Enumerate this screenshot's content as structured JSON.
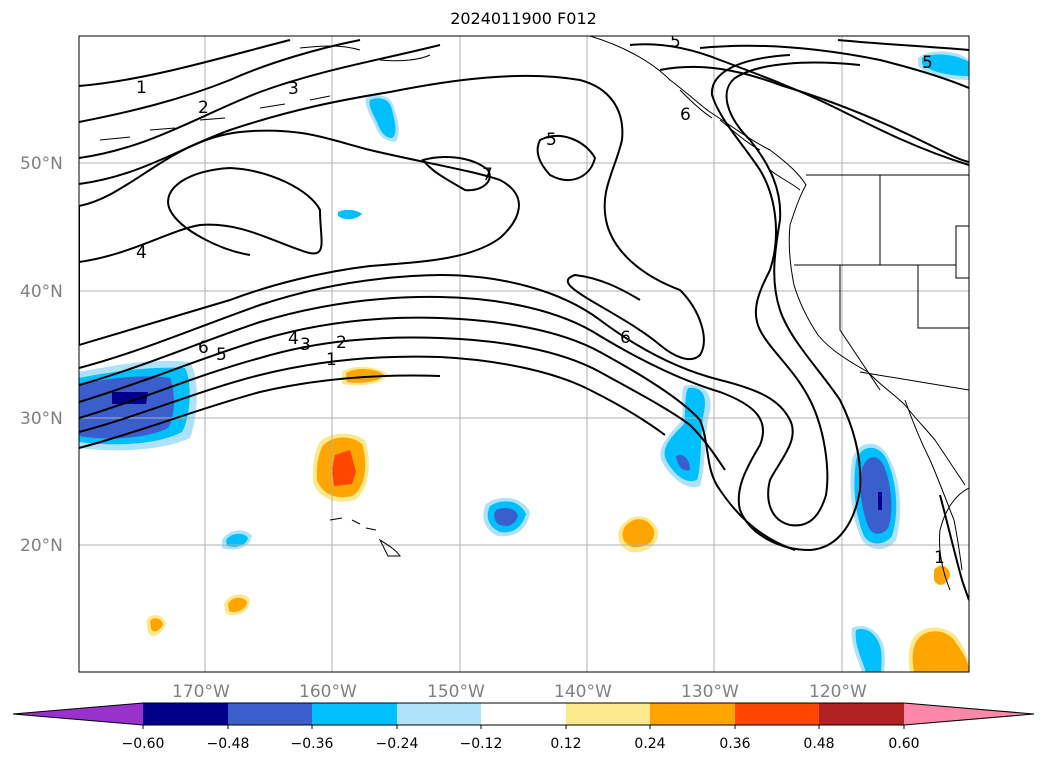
{
  "title": "2024011900 F012",
  "map": {
    "lat_labels": [
      "50°N",
      "40°N",
      "30°N",
      "20°N"
    ],
    "lon_labels": [
      "170°W",
      "160°W",
      "150°W",
      "140°W",
      "130°W",
      "120°W"
    ],
    "contour_labels": [
      "1",
      "2",
      "3",
      "4",
      "5",
      "6",
      "7",
      "5",
      "6",
      "4",
      "3",
      "2",
      "1",
      "5",
      "6",
      "1",
      "5"
    ],
    "grid": true,
    "colors": {
      "coastline": "#000000",
      "contour": "#000000",
      "gridline": "#b0b0b0"
    }
  },
  "colorbar": {
    "ticks": [
      "−0.60",
      "−0.48",
      "−0.36",
      "−0.24",
      "−0.12",
      "0.12",
      "0.24",
      "0.36",
      "0.48",
      "0.60"
    ],
    "colors": [
      "#9932cc",
      "#00008b",
      "#3a5fcd",
      "#00bfff",
      "#ade2fa",
      "#ffffff",
      "#fbe98c",
      "#ffa500",
      "#ff4500",
      "#b22222",
      "#ff88aa"
    ]
  }
}
